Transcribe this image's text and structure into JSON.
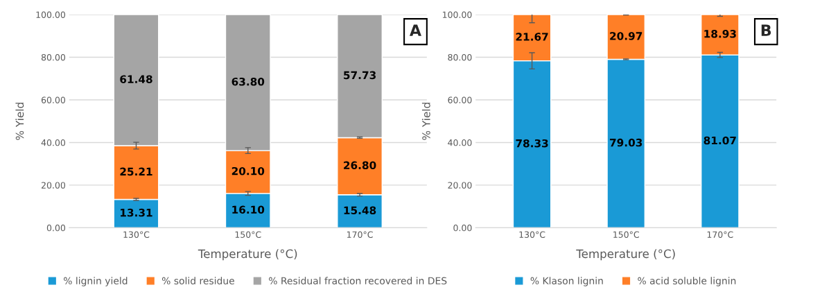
{
  "chart_data": [
    {
      "type": "bar",
      "stacked": true,
      "categories": [
        "130°C",
        "150°C",
        "170°C"
      ],
      "xlabel": "Temperature (°C)",
      "ylabel": "% Yield",
      "ylim": [
        0,
        100
      ],
      "yticks": [
        {
          "value": 0,
          "label": "0.00"
        },
        {
          "value": 20,
          "label": "20.00"
        },
        {
          "value": 40,
          "label": "40.00"
        },
        {
          "value": 60,
          "label": "60.00"
        },
        {
          "value": 80,
          "label": "80.00"
        },
        {
          "value": 100,
          "label": "100.00"
        }
      ],
      "grid": "y",
      "legend": "bottom",
      "annotations": [
        "A"
      ],
      "series": [
        {
          "name": "% lignin yield",
          "color": "#1a9ad6",
          "values": [
            13.31,
            16.1,
            15.48
          ],
          "value_labels": [
            "13.31",
            "16.10",
            "15.48"
          ],
          "errors": [
            0.5,
            0.9,
            0.6
          ]
        },
        {
          "name": "% solid residue",
          "color": "#ff7f27",
          "values": [
            25.21,
            20.1,
            26.8
          ],
          "value_labels": [
            "25.21",
            "20.10",
            "26.80"
          ],
          "errors": [
            1.6,
            1.4,
            0.3
          ]
        },
        {
          "name": "% Residual fraction recovered in DES",
          "color": "#a5a5a5",
          "values": [
            61.48,
            63.8,
            57.73
          ],
          "value_labels": [
            "61.48",
            "63.80",
            "57.73"
          ]
        }
      ]
    },
    {
      "type": "bar",
      "stacked": true,
      "categories": [
        "130°C",
        "150°C",
        "170°C"
      ],
      "xlabel": "Temperature (°C)",
      "ylabel": "% Yield",
      "ylim": [
        0,
        100
      ],
      "yticks": [
        {
          "value": 0,
          "label": "0.00"
        },
        {
          "value": 20,
          "label": "20.00"
        },
        {
          "value": 40,
          "label": "40.00"
        },
        {
          "value": 60,
          "label": "60.00"
        },
        {
          "value": 80,
          "label": "80.00"
        },
        {
          "value": 100,
          "label": "100.00"
        }
      ],
      "grid": "y",
      "legend": "bottom",
      "annotations": [
        "B"
      ],
      "series": [
        {
          "name": "% Klason lignin",
          "color": "#1a9ad6",
          "values": [
            78.33,
            79.03,
            81.07
          ],
          "value_labels": [
            "78.33",
            "79.03",
            "81.07"
          ],
          "errors": [
            3.8,
            0.2,
            1.2
          ]
        },
        {
          "name": "% acid soluble lignin",
          "color": "#ff7f27",
          "values": [
            21.67,
            20.97,
            18.93
          ],
          "value_labels": [
            "21.67",
            "20.97",
            "18.93"
          ],
          "errors": [
            3.8,
            0.2,
            0.8
          ]
        }
      ]
    }
  ]
}
